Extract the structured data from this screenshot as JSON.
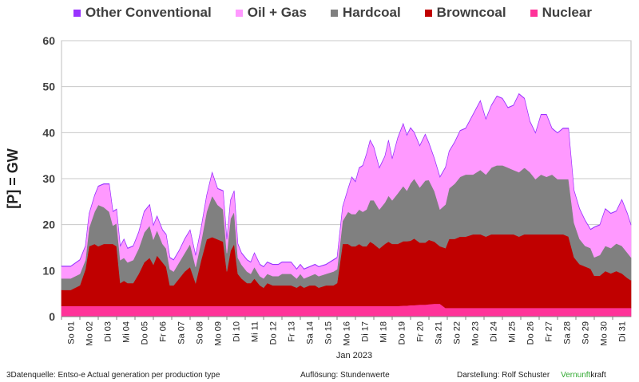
{
  "chart_data": {
    "type": "area",
    "stacked": true,
    "ylabel": "[P] = GW",
    "xlabel": "Jan 2023",
    "ylim": [
      0,
      60
    ],
    "yticks": [
      0,
      10,
      20,
      30,
      40,
      50,
      60
    ],
    "grid": true,
    "legend_position": "top",
    "categories": [
      "So 01",
      "Mo 02",
      "Di 03",
      "Mi 04",
      "Do 05",
      "Fr 06",
      "Sa 07",
      "So 08",
      "Mo 09",
      "Di 10",
      "Mi 11",
      "Do 12",
      "Fr 13",
      "Sa 14",
      "So 15",
      "Mo 16",
      "Di 17",
      "Mi 18",
      "Do 19",
      "Fr 20",
      "Sa 21",
      "So 22",
      "Mo 23",
      "Di 24",
      "Mi 25",
      "Do 26",
      "Fr 27",
      "Sa 28",
      "So 29",
      "Mo 30",
      "Di 31"
    ],
    "x": [
      0.0,
      0.5,
      1.0,
      1.3,
      1.5,
      1.8,
      2.0,
      2.3,
      2.6,
      2.8,
      3.0,
      3.2,
      3.4,
      3.6,
      3.9,
      4.2,
      4.5,
      4.8,
      5.0,
      5.2,
      5.5,
      5.7,
      5.9,
      6.1,
      6.4,
      6.7,
      7.0,
      7.3,
      7.6,
      7.9,
      8.2,
      8.5,
      8.8,
      9.0,
      9.2,
      9.4,
      9.6,
      9.8,
      10.1,
      10.3,
      10.5,
      10.8,
      11.0,
      11.2,
      11.5,
      11.8,
      12.0,
      12.2,
      12.5,
      12.8,
      13.0,
      13.2,
      13.5,
      13.8,
      14.0,
      14.4,
      14.8,
      15.0,
      15.3,
      15.6,
      15.8,
      16.0,
      16.2,
      16.4,
      16.6,
      16.8,
      17.0,
      17.3,
      17.6,
      17.8,
      18.0,
      18.3,
      18.6,
      18.8,
      19.0,
      19.2,
      19.5,
      19.8,
      20.0,
      20.3,
      20.6,
      20.9,
      21.1,
      21.4,
      21.7,
      22.0,
      22.4,
      22.8,
      23.1,
      23.4,
      23.7,
      24.0,
      24.3,
      24.6,
      24.9,
      25.2,
      25.5,
      25.8,
      26.1,
      26.4,
      26.7,
      27.0,
      27.3,
      27.6,
      27.9,
      28.2,
      28.5,
      28.8,
      29.0,
      29.3,
      29.6,
      29.9,
      30.2,
      30.5,
      30.8,
      31.0
    ],
    "series": [
      {
        "name": "Nuclear",
        "color": "#ff3399",
        "values": [
          2.3,
          2.3,
          2.3,
          2.3,
          2.3,
          2.3,
          2.3,
          2.3,
          2.3,
          2.3,
          2.3,
          2.3,
          2.3,
          2.3,
          2.3,
          2.3,
          2.3,
          2.3,
          2.3,
          2.3,
          2.3,
          2.3,
          2.3,
          2.3,
          2.3,
          2.3,
          2.3,
          2.3,
          2.3,
          2.3,
          2.3,
          2.3,
          2.3,
          2.3,
          2.3,
          2.3,
          2.3,
          2.3,
          2.3,
          2.3,
          2.3,
          2.3,
          2.3,
          2.3,
          2.3,
          2.3,
          2.3,
          2.3,
          2.3,
          2.3,
          2.3,
          2.3,
          2.3,
          2.3,
          2.3,
          2.3,
          2.3,
          2.3,
          2.3,
          2.3,
          2.3,
          2.3,
          2.3,
          2.3,
          2.3,
          2.3,
          2.3,
          2.3,
          2.3,
          2.3,
          2.3,
          2.3,
          2.4,
          2.4,
          2.5,
          2.5,
          2.6,
          2.6,
          2.7,
          2.8,
          2.8,
          1.9,
          1.9,
          1.9,
          1.9,
          1.9,
          1.9,
          1.9,
          1.9,
          1.9,
          1.9,
          1.9,
          1.9,
          1.9,
          1.9,
          1.9,
          1.9,
          1.9,
          1.9,
          1.9,
          1.9,
          1.9,
          1.9,
          1.9,
          1.9,
          1.9,
          1.9,
          1.9,
          1.9,
          1.9,
          1.9,
          1.9,
          1.9,
          1.9,
          1.9,
          1.9
        ]
      },
      {
        "name": "Browncoal",
        "color": "#c00000",
        "values": [
          3.5,
          3.5,
          4.5,
          8.0,
          13.0,
          13.5,
          13.0,
          13.5,
          13.5,
          13.5,
          13.0,
          5.0,
          5.5,
          5.0,
          5.0,
          7.0,
          9.5,
          10.5,
          9.0,
          11.0,
          9.5,
          8.5,
          4.5,
          4.5,
          6.0,
          7.5,
          8.5,
          5.0,
          10.0,
          14.5,
          15.0,
          14.5,
          14.0,
          7.5,
          12.0,
          13.5,
          7.0,
          6.0,
          5.0,
          5.0,
          6.0,
          4.5,
          4.0,
          5.0,
          4.5,
          4.5,
          4.5,
          4.5,
          4.5,
          4.0,
          4.5,
          4.0,
          4.5,
          4.5,
          4.0,
          4.5,
          4.5,
          5.0,
          13.5,
          13.5,
          13.0,
          13.0,
          13.5,
          13.0,
          13.0,
          14.0,
          13.5,
          12.5,
          13.5,
          14.0,
          13.5,
          13.5,
          14.0,
          14.0,
          14.0,
          14.5,
          13.5,
          13.5,
          14.0,
          13.5,
          12.5,
          13.0,
          15.0,
          15.0,
          15.5,
          15.5,
          16.0,
          16.0,
          15.5,
          16.0,
          16.0,
          16.0,
          16.0,
          16.0,
          15.5,
          16.0,
          16.0,
          16.0,
          16.0,
          16.0,
          16.0,
          16.0,
          16.0,
          15.5,
          11.0,
          9.5,
          9.0,
          8.5,
          7.0,
          7.0,
          8.0,
          7.5,
          8.0,
          7.5,
          6.5,
          6.0
        ]
      },
      {
        "name": "Hardcoal",
        "color": "#808080",
        "values": [
          2.5,
          2.5,
          2.5,
          2.0,
          4.0,
          7.0,
          9.0,
          8.0,
          7.0,
          4.0,
          5.0,
          5.0,
          5.0,
          4.5,
          5.0,
          5.5,
          6.5,
          7.0,
          5.5,
          5.5,
          4.0,
          4.0,
          3.5,
          3.0,
          3.5,
          4.0,
          5.0,
          3.5,
          4.0,
          6.0,
          9.0,
          7.5,
          7.0,
          4.0,
          7.0,
          7.0,
          3.5,
          3.0,
          2.5,
          2.0,
          2.5,
          2.0,
          2.0,
          2.0,
          2.0,
          2.0,
          2.5,
          2.5,
          2.5,
          2.0,
          2.5,
          2.0,
          2.0,
          2.5,
          2.5,
          2.5,
          3.0,
          3.0,
          5.0,
          7.0,
          7.0,
          7.0,
          7.5,
          7.5,
          8.0,
          9.0,
          9.5,
          8.5,
          9.0,
          10.0,
          9.5,
          11.0,
          12.0,
          11.0,
          12.5,
          13.0,
          12.0,
          13.5,
          13.0,
          11.0,
          8.0,
          9.5,
          11.0,
          12.0,
          13.0,
          13.5,
          13.0,
          14.0,
          13.5,
          14.5,
          15.0,
          15.0,
          14.5,
          14.0,
          14.0,
          14.5,
          13.5,
          12.0,
          13.0,
          12.5,
          13.0,
          12.0,
          12.0,
          12.5,
          7.5,
          5.5,
          4.5,
          4.5,
          4.0,
          4.5,
          5.5,
          5.5,
          6.0,
          6.0,
          5.5,
          5.0
        ]
      },
      {
        "name": "Oil + Gas",
        "color": "#ff99ff",
        "values": [
          2.6,
          2.6,
          3.0,
          3.0,
          3.0,
          3.5,
          4.0,
          5.0,
          6.0,
          3.0,
          3.0,
          3.0,
          4.0,
          3.0,
          3.0,
          3.5,
          4.5,
          4.5,
          3.0,
          3.0,
          3.0,
          3.0,
          2.5,
          2.5,
          2.5,
          3.0,
          3.0,
          2.5,
          3.0,
          3.5,
          5.0,
          3.5,
          4.0,
          3.0,
          4.0,
          4.5,
          3.0,
          2.5,
          2.5,
          2.5,
          3.0,
          2.5,
          2.5,
          2.5,
          2.5,
          2.5,
          2.5,
          2.5,
          2.5,
          2.0,
          2.0,
          2.0,
          2.0,
          2.0,
          2.0,
          2.0,
          2.5,
          2.5,
          3.0,
          5.0,
          8.0,
          7.0,
          9.0,
          10.0,
          12.0,
          13.0,
          11.5,
          9.0,
          10.0,
          12.0,
          9.0,
          12.0,
          13.5,
          12.0,
          12.0,
          10.0,
          9.0,
          10.0,
          8.0,
          7.0,
          7.0,
          8.0,
          8.0,
          9.0,
          10.0,
          10.0,
          13.0,
          15.0,
          12.0,
          13.5,
          15.0,
          14.5,
          13.0,
          14.0,
          17.0,
          15.0,
          11.0,
          10.0,
          13.0,
          13.5,
          10.0,
          10.0,
          11.0,
          11.0,
          7.0,
          6.5,
          5.5,
          4.0,
          6.5,
          6.5,
          8.0,
          7.5,
          7.0,
          10.0,
          8.5,
          7.0
        ]
      },
      {
        "name": "Other Conventional",
        "color": "#9933ff",
        "values": [
          0.1,
          0.1,
          0.1,
          0.1,
          0.1,
          0.1,
          0.1,
          0.1,
          0.1,
          0.1,
          0.1,
          0.1,
          0.1,
          0.1,
          0.1,
          0.1,
          0.1,
          0.1,
          0.1,
          0.1,
          0.1,
          0.1,
          0.1,
          0.1,
          0.1,
          0.1,
          0.1,
          0.1,
          0.1,
          0.1,
          0.1,
          0.1,
          0.1,
          0.1,
          0.1,
          0.1,
          0.1,
          0.1,
          0.1,
          0.1,
          0.1,
          0.1,
          0.1,
          0.1,
          0.1,
          0.1,
          0.1,
          0.1,
          0.1,
          0.1,
          0.1,
          0.1,
          0.1,
          0.1,
          0.1,
          0.1,
          0.1,
          0.1,
          0.1,
          0.1,
          0.1,
          0.1,
          0.1,
          0.1,
          0.1,
          0.1,
          0.1,
          0.1,
          0.1,
          0.1,
          0.1,
          0.1,
          0.1,
          0.1,
          0.1,
          0.1,
          0.1,
          0.1,
          0.1,
          0.1,
          0.1,
          0.1,
          0.1,
          0.1,
          0.1,
          0.1,
          0.1,
          0.1,
          0.1,
          0.1,
          0.1,
          0.1,
          0.1,
          0.1,
          0.1,
          0.1,
          0.1,
          0.1,
          0.1,
          0.1,
          0.1,
          0.1,
          0.1,
          0.1,
          0.1,
          0.1,
          0.1,
          0.1,
          0.1,
          0.1,
          0.1,
          0.1,
          0.1,
          0.1,
          0.1,
          0.1
        ]
      }
    ]
  },
  "legend": [
    {
      "label": "Other Conventional",
      "color": "#9933ff"
    },
    {
      "label": "Oil + Gas",
      "color": "#ff99ff"
    },
    {
      "label": "Hardcoal",
      "color": "#808080"
    },
    {
      "label": "Browncoal",
      "color": "#c00000"
    },
    {
      "label": "Nuclear",
      "color": "#ff3399"
    }
  ],
  "footer": {
    "source": "3Datenquelle: Entso-e  Actual generation per production type",
    "resolution": "Auflösung: Stundenwerte",
    "author_prefix": "Darstellung:  Rolf Schuster",
    "brand_green": "Vernunft",
    "brand_rest": "kraft",
    "brand_color": "#33aa33"
  }
}
